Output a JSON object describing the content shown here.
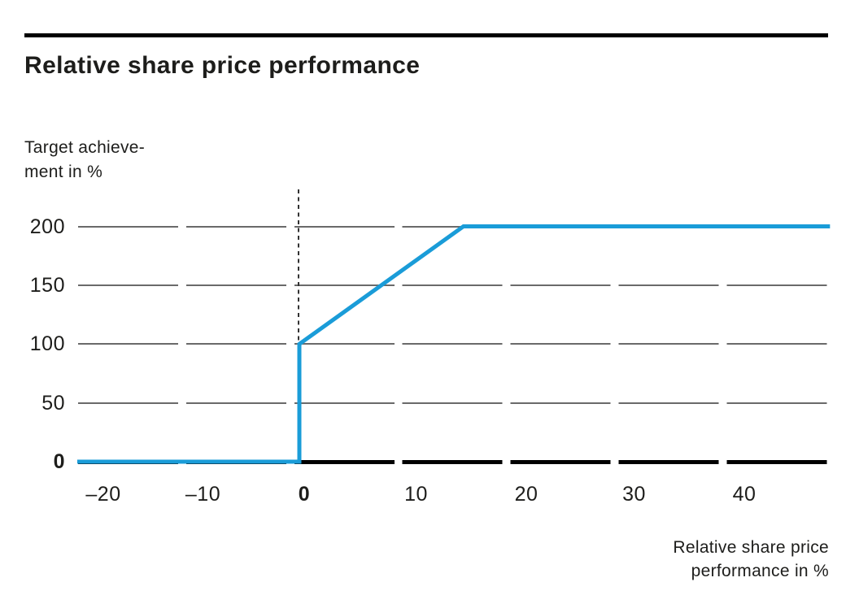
{
  "chart_data": {
    "type": "line",
    "title": "Relative share price performance",
    "y_axis": {
      "title_lines": [
        "Target achieve-",
        "ment in %"
      ],
      "ticks": [
        {
          "label": "200",
          "value": 200,
          "bold": false
        },
        {
          "label": "150",
          "value": 150,
          "bold": false
        },
        {
          "label": "100",
          "value": 100,
          "bold": false
        },
        {
          "label": "50",
          "value": 50,
          "bold": false
        },
        {
          "label": "0",
          "value": 0,
          "bold": true
        }
      ],
      "range": [
        0,
        200
      ]
    },
    "x_axis": {
      "title_lines": [
        "Relative share price",
        "performance in %"
      ],
      "ticks": [
        {
          "label": "–20",
          "value": -20,
          "bold": false
        },
        {
          "label": "–10",
          "value": -10,
          "bold": false
        },
        {
          "label": "0",
          "value": 0,
          "bold": true
        },
        {
          "label": "10",
          "value": 10,
          "bold": false
        },
        {
          "label": "20",
          "value": 20,
          "bold": false
        },
        {
          "label": "30",
          "value": 30,
          "bold": false
        },
        {
          "label": "40",
          "value": 40,
          "bold": false
        }
      ],
      "range": [
        -20.3,
        48.5
      ]
    },
    "series": [
      {
        "name": "target-achievement",
        "color": "#1a9cd8",
        "points": [
          [
            -20.3,
            0
          ],
          [
            0,
            0
          ],
          [
            0,
            100
          ],
          [
            15,
            200
          ],
          [
            48.5,
            200
          ]
        ]
      }
    ],
    "annotations": [
      {
        "type": "dashed-vline",
        "x": 0
      }
    ],
    "colors": {
      "line": "#1a9cd8",
      "grid": "#6a6a6a",
      "axis": "#000000",
      "text": "#1d1d1b"
    },
    "grid": {
      "orientation": "horizontal",
      "segmented": true,
      "legend": "none"
    }
  }
}
